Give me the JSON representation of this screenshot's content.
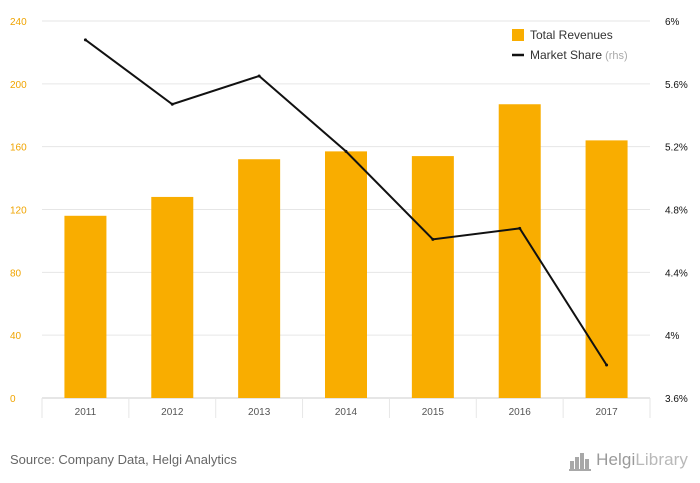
{
  "colors": {
    "bar": "#f9ad00",
    "line": "#111111",
    "grid": "#e6e6e6",
    "left_tick": "#f0a400",
    "right_tick": "#111111",
    "x_tick": "#555555"
  },
  "chart_data": {
    "type": "bar",
    "categories": [
      "2011",
      "2012",
      "2013",
      "2014",
      "2015",
      "2016",
      "2017"
    ],
    "series": [
      {
        "name": "Total Revenues",
        "type": "bar",
        "axis": "left",
        "values": [
          116,
          128,
          152,
          157,
          154,
          187,
          164
        ]
      },
      {
        "name": "Market Share",
        "type": "line",
        "axis": "right",
        "values": [
          5.88,
          5.47,
          5.65,
          5.17,
          4.61,
          4.68,
          3.81
        ]
      }
    ],
    "left_axis": {
      "min": 0,
      "max": 240,
      "ticks": [
        0,
        40,
        80,
        120,
        160,
        200,
        240
      ],
      "labels": [
        "0",
        "40",
        "80",
        "120",
        "160",
        "200",
        "240"
      ]
    },
    "right_axis": {
      "min": 3.6,
      "max": 6.0,
      "ticks": [
        3.6,
        4.0,
        4.4,
        4.8,
        5.2,
        5.6,
        6.0
      ],
      "labels": [
        "3.6%",
        "4%",
        "4.4%",
        "4.8%",
        "5.2%",
        "5.6%",
        "6%"
      ]
    },
    "legend": {
      "position": "top-right",
      "items": [
        {
          "label": "Total Revenues",
          "marker": "square",
          "suffix": ""
        },
        {
          "label": "Market Share",
          "marker": "line",
          "suffix": "(rhs)"
        }
      ]
    },
    "grid": true
  },
  "footer": {
    "source": "Source: Company Data, Helgi Analytics",
    "brand_main": "Helgi",
    "brand_light": "Library"
  }
}
